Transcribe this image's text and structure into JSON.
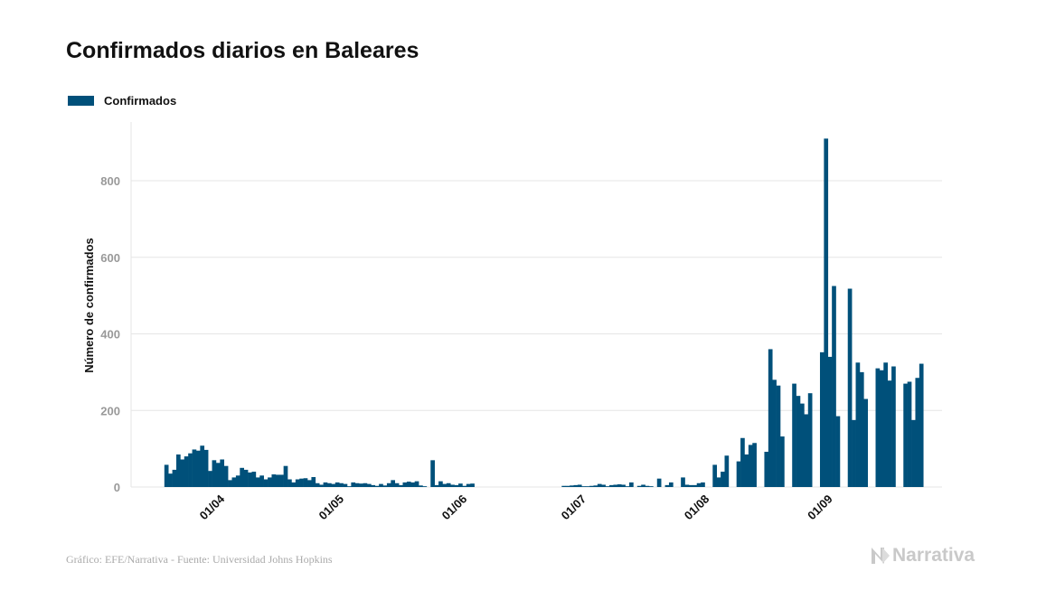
{
  "title": "Confirmados diarios en Baleares",
  "source": "Gráfico: EFE/Narrativa - Fuente: Universidad Johns Hopkins",
  "logo": {
    "text": "Narrativa",
    "icon": "narrativa-n-logo"
  },
  "colors": {
    "bar": "#00507a",
    "grid": "#e6e6e6",
    "axis_tick": "#999999",
    "logo": "#c9c9c9"
  },
  "chart_data": {
    "type": "bar",
    "title": "Confirmados diarios en Baleares",
    "ylabel": "Número de confirmados",
    "xlabel": "",
    "ylim": [
      0,
      950
    ],
    "yticks": [
      0,
      200,
      400,
      600,
      800
    ],
    "grid": true,
    "legend_position": "top-left",
    "x_start": "2020-03-19",
    "x_ticks": [
      "01/04",
      "01/05",
      "01/06",
      "01/07",
      "01/08",
      "01/09"
    ],
    "x_tick_dates": [
      "2020-04-01",
      "2020-05-01",
      "2020-06-01",
      "2020-07-01",
      "2020-08-01",
      "2020-09-01"
    ],
    "series": [
      {
        "name": "Confirmados",
        "values": [
          58,
          35,
          45,
          85,
          72,
          80,
          88,
          98,
          95,
          108,
          97,
          42,
          70,
          63,
          72,
          55,
          18,
          25,
          30,
          50,
          45,
          38,
          40,
          25,
          30,
          20,
          25,
          33,
          32,
          32,
          55,
          20,
          12,
          20,
          22,
          23,
          18,
          26,
          10,
          6,
          12,
          10,
          8,
          12,
          10,
          8,
          2,
          12,
          10,
          9,
          10,
          8,
          5,
          3,
          8,
          4,
          10,
          18,
          10,
          5,
          12,
          14,
          12,
          15,
          4,
          2,
          0,
          70,
          5,
          15,
          8,
          10,
          6,
          5,
          9,
          3,
          8,
          9,
          0,
          0,
          0,
          0,
          0,
          0,
          0,
          0,
          0,
          0,
          0,
          0,
          0,
          0,
          0,
          0,
          0,
          0,
          0,
          0,
          0,
          0,
          3,
          3,
          4,
          5,
          6,
          2,
          2,
          3,
          4,
          8,
          6,
          2,
          5,
          6,
          7,
          6,
          2,
          12,
          0,
          3,
          6,
          3,
          2,
          0,
          22,
          0,
          5,
          12,
          0,
          0,
          25,
          6,
          5,
          5,
          10,
          12,
          0,
          0,
          58,
          25,
          40,
          82,
          0,
          0,
          67,
          128,
          85,
          110,
          115,
          0,
          0,
          92,
          360,
          280,
          265,
          132,
          0,
          0,
          270,
          238,
          218,
          190,
          245,
          0,
          0,
          352,
          910,
          340,
          525,
          185,
          0,
          0,
          518,
          175,
          325,
          300,
          230,
          0,
          0,
          310,
          305,
          325,
          278,
          315,
          0,
          0,
          270,
          275,
          175,
          285,
          322
        ]
      }
    ]
  }
}
